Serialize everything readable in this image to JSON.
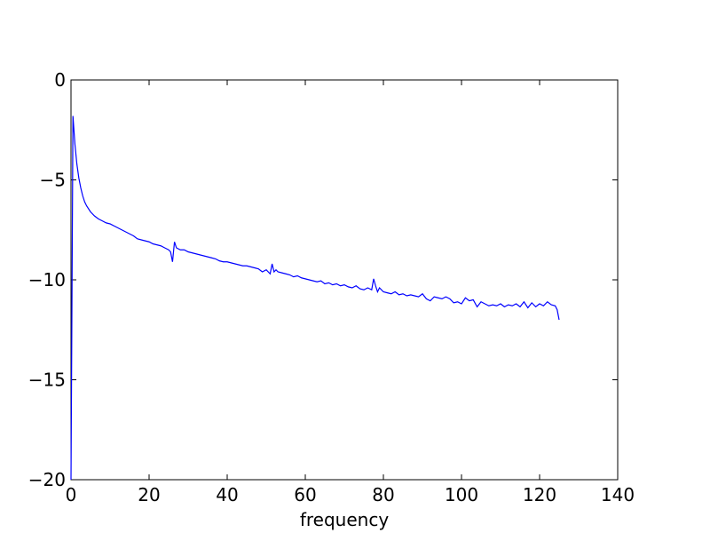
{
  "chart_data": {
    "type": "line",
    "title": "",
    "xlabel": "frequency",
    "ylabel": "",
    "xlim": [
      0,
      140
    ],
    "ylim": [
      -20,
      0
    ],
    "xticks": [
      0,
      20,
      40,
      60,
      80,
      100,
      120,
      140
    ],
    "yticks": [
      0,
      -5,
      -10,
      -15,
      -20
    ],
    "xtick_labels": [
      "0",
      "20",
      "40",
      "60",
      "80",
      "100",
      "120",
      "140"
    ],
    "ytick_labels": [
      "0",
      "−5",
      "−10",
      "−15",
      "−20"
    ],
    "grid": false,
    "line_color": "#0000ff",
    "series": [
      {
        "x": [
          0,
          0.5,
          1,
          1.5,
          2,
          2.5,
          3,
          3.5,
          4,
          5,
          6,
          7,
          8,
          9,
          10,
          11,
          12,
          13,
          14,
          15,
          16,
          17,
          18,
          19,
          20,
          21,
          22,
          23,
          24,
          25,
          25.5,
          26,
          26.5,
          27,
          28,
          29,
          30,
          31,
          32,
          33,
          34,
          35,
          36,
          37,
          38,
          39,
          40,
          41,
          42,
          43,
          44,
          45,
          46,
          47,
          48,
          49,
          50,
          51,
          51.5,
          52,
          52.5,
          53,
          54,
          55,
          56,
          57,
          58,
          59,
          60,
          61,
          62,
          63,
          64,
          65,
          66,
          67,
          68,
          69,
          70,
          71,
          72,
          73,
          74,
          75,
          76,
          77,
          77.5,
          78,
          78.5,
          79,
          80,
          81,
          82,
          83,
          84,
          85,
          86,
          87,
          88,
          89,
          90,
          91,
          92,
          93,
          94,
          95,
          96,
          97,
          98,
          99,
          100,
          101,
          102,
          103,
          104,
          105,
          106,
          107,
          108,
          109,
          110,
          111,
          112,
          113,
          114,
          115,
          116,
          117,
          118,
          119,
          120,
          121,
          122,
          123,
          124,
          124.5,
          125
        ],
        "y": [
          -20,
          -1.8,
          -3.2,
          -4.2,
          -4.9,
          -5.4,
          -5.8,
          -6.1,
          -6.3,
          -6.6,
          -6.8,
          -6.95,
          -7.05,
          -7.15,
          -7.2,
          -7.3,
          -7.4,
          -7.5,
          -7.6,
          -7.7,
          -7.8,
          -7.95,
          -8.0,
          -8.05,
          -8.1,
          -8.2,
          -8.25,
          -8.3,
          -8.4,
          -8.5,
          -8.6,
          -9.1,
          -8.1,
          -8.4,
          -8.5,
          -8.5,
          -8.6,
          -8.65,
          -8.7,
          -8.75,
          -8.8,
          -8.85,
          -8.9,
          -8.95,
          -9.05,
          -9.1,
          -9.1,
          -9.15,
          -9.2,
          -9.25,
          -9.3,
          -9.3,
          -9.35,
          -9.4,
          -9.45,
          -9.6,
          -9.5,
          -9.7,
          -9.2,
          -9.6,
          -9.5,
          -9.6,
          -9.65,
          -9.7,
          -9.75,
          -9.85,
          -9.8,
          -9.9,
          -9.95,
          -10.0,
          -10.05,
          -10.1,
          -10.05,
          -10.2,
          -10.15,
          -10.25,
          -10.2,
          -10.3,
          -10.25,
          -10.35,
          -10.4,
          -10.3,
          -10.45,
          -10.5,
          -10.4,
          -10.5,
          -9.95,
          -10.3,
          -10.6,
          -10.4,
          -10.6,
          -10.65,
          -10.7,
          -10.6,
          -10.75,
          -10.7,
          -10.8,
          -10.75,
          -10.8,
          -10.85,
          -10.7,
          -10.95,
          -11.05,
          -10.85,
          -10.9,
          -10.95,
          -10.85,
          -10.95,
          -11.15,
          -11.1,
          -11.2,
          -10.9,
          -11.05,
          -11.0,
          -11.35,
          -11.1,
          -11.2,
          -11.3,
          -11.25,
          -11.3,
          -11.2,
          -11.35,
          -11.25,
          -11.3,
          -11.2,
          -11.35,
          -11.1,
          -11.4,
          -11.15,
          -11.35,
          -11.2,
          -11.3,
          -11.1,
          -11.25,
          -11.3,
          -11.5,
          -12.0
        ]
      }
    ]
  }
}
